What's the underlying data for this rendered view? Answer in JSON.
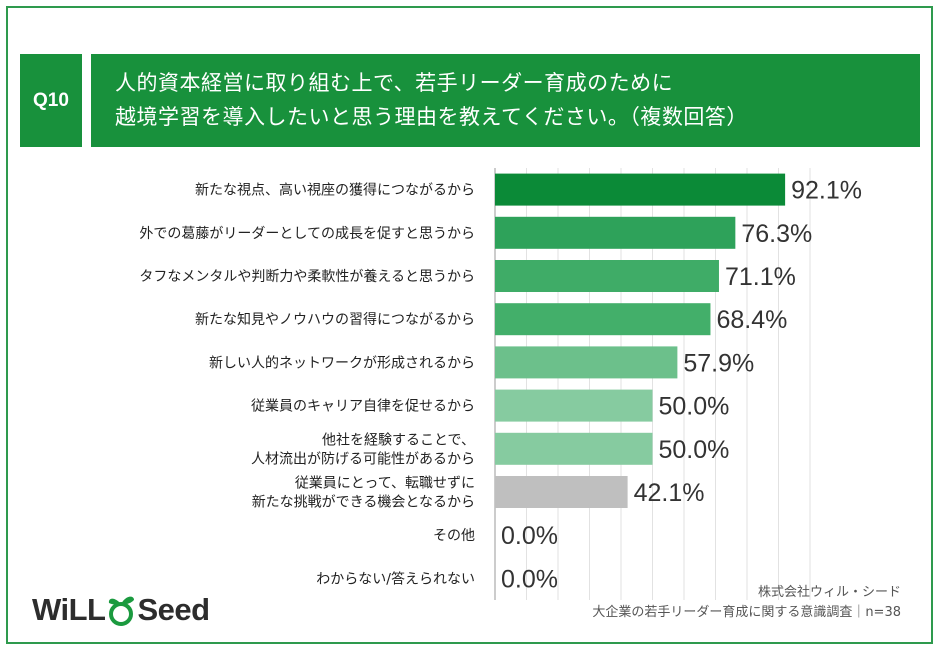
{
  "question": {
    "number": "Q10",
    "line1": "人的資本経営に取り組む上で、若手リーダー育成のために",
    "line2": "越境学習を導入したいと思う理由を教えてください。（複数回答）"
  },
  "chart_data": {
    "type": "bar",
    "orientation": "horizontal",
    "unit": "%",
    "xlim": [
      0,
      100
    ],
    "grid": true,
    "categories": [
      [
        "新たな視点、高い視座の獲得につながるから"
      ],
      [
        "外での葛藤がリーダーとしての成長を促すと思うから"
      ],
      [
        "タフなメンタルや判断力や柔軟性が養えると思うから"
      ],
      [
        "新たな知見やノウハウの習得につながるから"
      ],
      [
        "新しい人的ネットワークが形成されるから"
      ],
      [
        "従業員のキャリア自律を促せるから"
      ],
      [
        "他社を経験することで、",
        "人材流出が防げる可能性があるから"
      ],
      [
        "従業員にとって、転職せずに",
        "新たな挑戦ができる機会となるから"
      ],
      [
        "その他"
      ],
      [
        "わからない/答えられない"
      ]
    ],
    "values": [
      92.1,
      76.3,
      71.1,
      68.4,
      57.9,
      50.0,
      50.0,
      42.1,
      0.0,
      0.0
    ],
    "value_labels": [
      "92.1%",
      "76.3%",
      "71.1%",
      "68.4%",
      "57.9%",
      "50.0%",
      "50.0%",
      "42.1%",
      "0.0%",
      "0.0%"
    ],
    "colors": [
      "#0b8a37",
      "#2ea25a",
      "#3fac67",
      "#43af6a",
      "#6cc08b",
      "#86cba0",
      "#86cba0",
      "#bfbfbf",
      "#bfbfbf",
      "#bfbfbf"
    ]
  },
  "footer": {
    "company": "株式会社ウィル・シード",
    "survey": "大企業の若手リーダー育成に関する意識調査｜n=38"
  },
  "logo": {
    "text_left": "WiLL",
    "text_right": "Seed",
    "sprout_color": "#1b9a3f"
  }
}
